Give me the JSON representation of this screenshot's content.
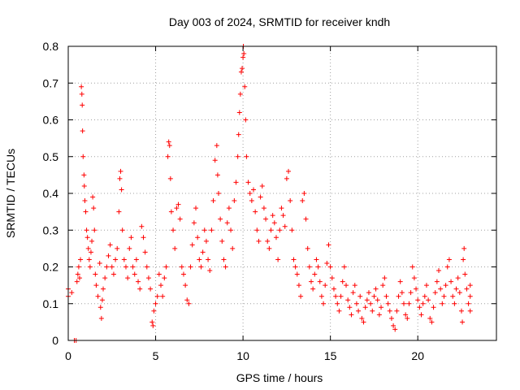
{
  "chart_data": {
    "type": "scatter",
    "title": "Day 003 of 2024, SRMTID for receiver kndh",
    "xlabel": "GPS time / hours",
    "ylabel": "SRMTID / TECUs",
    "xlim": [
      0,
      24.5
    ],
    "ylim": [
      0,
      0.8
    ],
    "xticks": [
      0,
      5,
      10,
      15,
      20
    ],
    "xtick_labels": [
      "0",
      "5",
      "10",
      "15",
      "20"
    ],
    "yticks": [
      0,
      0.1,
      0.2,
      0.3,
      0.4,
      0.5,
      0.6,
      0.7,
      0.8
    ],
    "ytick_labels": [
      "0",
      "0.1",
      "0.2",
      "0.3",
      "0.4",
      "0.5",
      "0.6",
      "0.7",
      "0.8"
    ],
    "grid": true,
    "marker": "+",
    "marker_color": "#ff0000",
    "series": [
      {
        "name": "SRMTID",
        "points": [
          [
            0.0,
            0.12
          ],
          [
            0.0,
            0.14
          ],
          [
            0.2,
            0.13
          ],
          [
            0.35,
            0.0
          ],
          [
            0.45,
            0.0
          ],
          [
            0.5,
            0.16
          ],
          [
            0.55,
            0.18
          ],
          [
            0.6,
            0.2
          ],
          [
            0.65,
            0.17
          ],
          [
            0.7,
            0.22
          ],
          [
            0.75,
            0.69
          ],
          [
            0.78,
            0.67
          ],
          [
            0.8,
            0.64
          ],
          [
            0.82,
            0.57
          ],
          [
            0.85,
            0.5
          ],
          [
            0.9,
            0.45
          ],
          [
            0.92,
            0.42
          ],
          [
            0.95,
            0.38
          ],
          [
            1.0,
            0.35
          ],
          [
            1.05,
            0.3
          ],
          [
            1.1,
            0.28
          ],
          [
            1.15,
            0.25
          ],
          [
            1.2,
            0.22
          ],
          [
            1.25,
            0.2
          ],
          [
            1.3,
            0.24
          ],
          [
            1.35,
            0.27
          ],
          [
            1.4,
            0.39
          ],
          [
            1.45,
            0.36
          ],
          [
            1.5,
            0.3
          ],
          [
            1.55,
            0.18
          ],
          [
            1.6,
            0.15
          ],
          [
            1.7,
            0.12
          ],
          [
            1.8,
            0.21
          ],
          [
            1.85,
            0.09
          ],
          [
            1.9,
            0.06
          ],
          [
            1.95,
            0.11
          ],
          [
            2.0,
            0.14
          ],
          [
            2.1,
            0.17
          ],
          [
            2.2,
            0.2
          ],
          [
            2.3,
            0.23
          ],
          [
            2.4,
            0.26
          ],
          [
            2.5,
            0.2
          ],
          [
            2.6,
            0.18
          ],
          [
            2.7,
            0.22
          ],
          [
            2.8,
            0.25
          ],
          [
            2.9,
            0.35
          ],
          [
            2.95,
            0.44
          ],
          [
            3.0,
            0.46
          ],
          [
            3.05,
            0.41
          ],
          [
            3.1,
            0.3
          ],
          [
            3.2,
            0.22
          ],
          [
            3.3,
            0.2
          ],
          [
            3.4,
            0.17
          ],
          [
            3.5,
            0.25
          ],
          [
            3.6,
            0.28
          ],
          [
            3.7,
            0.2
          ],
          [
            3.8,
            0.18
          ],
          [
            3.9,
            0.22
          ],
          [
            4.0,
            0.16
          ],
          [
            4.1,
            0.14
          ],
          [
            4.2,
            0.31
          ],
          [
            4.3,
            0.28
          ],
          [
            4.4,
            0.24
          ],
          [
            4.5,
            0.2
          ],
          [
            4.6,
            0.17
          ],
          [
            4.7,
            0.14
          ],
          [
            4.8,
            0.05
          ],
          [
            4.85,
            0.04
          ],
          [
            4.9,
            0.08
          ],
          [
            5.0,
            0.1
          ],
          [
            5.1,
            0.12
          ],
          [
            5.2,
            0.18
          ],
          [
            5.3,
            0.15
          ],
          [
            5.4,
            0.12
          ],
          [
            5.5,
            0.17
          ],
          [
            5.6,
            0.2
          ],
          [
            5.7,
            0.5
          ],
          [
            5.75,
            0.54
          ],
          [
            5.8,
            0.53
          ],
          [
            5.85,
            0.44
          ],
          [
            5.9,
            0.35
          ],
          [
            6.0,
            0.3
          ],
          [
            6.1,
            0.25
          ],
          [
            6.2,
            0.36
          ],
          [
            6.3,
            0.37
          ],
          [
            6.4,
            0.33
          ],
          [
            6.5,
            0.2
          ],
          [
            6.6,
            0.18
          ],
          [
            6.7,
            0.15
          ],
          [
            6.8,
            0.11
          ],
          [
            6.9,
            0.1
          ],
          [
            7.0,
            0.2
          ],
          [
            7.1,
            0.26
          ],
          [
            7.2,
            0.32
          ],
          [
            7.3,
            0.36
          ],
          [
            7.4,
            0.28
          ],
          [
            7.5,
            0.22
          ],
          [
            7.6,
            0.2
          ],
          [
            7.7,
            0.24
          ],
          [
            7.8,
            0.3
          ],
          [
            7.9,
            0.27
          ],
          [
            8.0,
            0.22
          ],
          [
            8.1,
            0.19
          ],
          [
            8.2,
            0.3
          ],
          [
            8.3,
            0.38
          ],
          [
            8.4,
            0.49
          ],
          [
            8.5,
            0.53
          ],
          [
            8.55,
            0.45
          ],
          [
            8.6,
            0.4
          ],
          [
            8.7,
            0.33
          ],
          [
            8.8,
            0.27
          ],
          [
            8.9,
            0.22
          ],
          [
            9.0,
            0.2
          ],
          [
            9.1,
            0.32
          ],
          [
            9.2,
            0.36
          ],
          [
            9.3,
            0.3
          ],
          [
            9.4,
            0.25
          ],
          [
            9.5,
            0.38
          ],
          [
            9.6,
            0.43
          ],
          [
            9.7,
            0.5
          ],
          [
            9.75,
            0.56
          ],
          [
            9.8,
            0.62
          ],
          [
            9.85,
            0.67
          ],
          [
            9.9,
            0.73
          ],
          [
            9.95,
            0.74
          ],
          [
            10.0,
            0.77
          ],
          [
            10.02,
            0.8
          ],
          [
            10.05,
            0.78
          ],
          [
            10.1,
            0.69
          ],
          [
            10.15,
            0.6
          ],
          [
            10.2,
            0.5
          ],
          [
            10.3,
            0.43
          ],
          [
            10.4,
            0.4
          ],
          [
            10.5,
            0.38
          ],
          [
            10.6,
            0.41
          ],
          [
            10.7,
            0.35
          ],
          [
            10.8,
            0.3
          ],
          [
            10.9,
            0.27
          ],
          [
            11.0,
            0.39
          ],
          [
            11.1,
            0.42
          ],
          [
            11.2,
            0.36
          ],
          [
            11.3,
            0.33
          ],
          [
            11.4,
            0.27
          ],
          [
            11.5,
            0.25
          ],
          [
            11.6,
            0.3
          ],
          [
            11.7,
            0.34
          ],
          [
            11.8,
            0.32
          ],
          [
            11.9,
            0.28
          ],
          [
            12.0,
            0.22
          ],
          [
            12.1,
            0.3
          ],
          [
            12.2,
            0.36
          ],
          [
            12.3,
            0.34
          ],
          [
            12.4,
            0.31
          ],
          [
            12.5,
            0.44
          ],
          [
            12.6,
            0.46
          ],
          [
            12.7,
            0.38
          ],
          [
            12.8,
            0.3
          ],
          [
            12.9,
            0.22
          ],
          [
            13.0,
            0.2
          ],
          [
            13.1,
            0.18
          ],
          [
            13.2,
            0.15
          ],
          [
            13.3,
            0.12
          ],
          [
            13.4,
            0.38
          ],
          [
            13.5,
            0.4
          ],
          [
            13.6,
            0.33
          ],
          [
            13.7,
            0.25
          ],
          [
            13.8,
            0.2
          ],
          [
            13.9,
            0.16
          ],
          [
            14.0,
            0.14
          ],
          [
            14.1,
            0.18
          ],
          [
            14.2,
            0.22
          ],
          [
            14.3,
            0.2
          ],
          [
            14.4,
            0.16
          ],
          [
            14.5,
            0.12
          ],
          [
            14.6,
            0.1
          ],
          [
            14.7,
            0.15
          ],
          [
            14.8,
            0.21
          ],
          [
            14.9,
            0.26
          ],
          [
            15.0,
            0.2
          ],
          [
            15.1,
            0.17
          ],
          [
            15.2,
            0.14
          ],
          [
            15.3,
            0.12
          ],
          [
            15.4,
            0.1
          ],
          [
            15.5,
            0.08
          ],
          [
            15.6,
            0.12
          ],
          [
            15.7,
            0.16
          ],
          [
            15.8,
            0.2
          ],
          [
            15.9,
            0.15
          ],
          [
            16.0,
            0.11
          ],
          [
            16.1,
            0.09
          ],
          [
            16.2,
            0.07
          ],
          [
            16.3,
            0.13
          ],
          [
            16.4,
            0.15
          ],
          [
            16.5,
            0.1
          ],
          [
            16.6,
            0.08
          ],
          [
            16.7,
            0.12
          ],
          [
            16.8,
            0.06
          ],
          [
            16.9,
            0.05
          ],
          [
            17.0,
            0.09
          ],
          [
            17.1,
            0.11
          ],
          [
            17.2,
            0.13
          ],
          [
            17.3,
            0.1
          ],
          [
            17.4,
            0.08
          ],
          [
            17.5,
            0.12
          ],
          [
            17.6,
            0.14
          ],
          [
            17.7,
            0.11
          ],
          [
            17.8,
            0.07
          ],
          [
            17.9,
            0.09
          ],
          [
            18.0,
            0.15
          ],
          [
            18.1,
            0.17
          ],
          [
            18.2,
            0.12
          ],
          [
            18.3,
            0.1
          ],
          [
            18.4,
            0.08
          ],
          [
            18.5,
            0.06
          ],
          [
            18.6,
            0.04
          ],
          [
            18.7,
            0.03
          ],
          [
            18.8,
            0.08
          ],
          [
            18.9,
            0.12
          ],
          [
            19.0,
            0.16
          ],
          [
            19.1,
            0.13
          ],
          [
            19.2,
            0.1
          ],
          [
            19.3,
            0.07
          ],
          [
            19.4,
            0.06
          ],
          [
            19.5,
            0.1
          ],
          [
            19.6,
            0.13
          ],
          [
            19.7,
            0.2
          ],
          [
            19.8,
            0.17
          ],
          [
            19.9,
            0.14
          ],
          [
            20.0,
            0.11
          ],
          [
            20.1,
            0.09
          ],
          [
            20.2,
            0.07
          ],
          [
            20.3,
            0.1
          ],
          [
            20.4,
            0.12
          ],
          [
            20.5,
            0.15
          ],
          [
            20.6,
            0.11
          ],
          [
            20.7,
            0.06
          ],
          [
            20.8,
            0.05
          ],
          [
            20.9,
            0.09
          ],
          [
            21.0,
            0.13
          ],
          [
            21.1,
            0.16
          ],
          [
            21.2,
            0.19
          ],
          [
            21.3,
            0.14
          ],
          [
            21.4,
            0.1
          ],
          [
            21.5,
            0.12
          ],
          [
            21.6,
            0.15
          ],
          [
            21.7,
            0.2
          ],
          [
            21.8,
            0.22
          ],
          [
            21.9,
            0.16
          ],
          [
            22.0,
            0.12
          ],
          [
            22.1,
            0.1
          ],
          [
            22.2,
            0.14
          ],
          [
            22.3,
            0.17
          ],
          [
            22.4,
            0.13
          ],
          [
            22.5,
            0.08
          ],
          [
            22.55,
            0.05
          ],
          [
            22.6,
            0.22
          ],
          [
            22.65,
            0.25
          ],
          [
            22.7,
            0.18
          ],
          [
            22.8,
            0.14
          ],
          [
            22.9,
            0.1
          ],
          [
            23.0,
            0.08
          ],
          [
            23.0,
            0.12
          ],
          [
            23.0,
            0.15
          ]
        ]
      }
    ]
  }
}
